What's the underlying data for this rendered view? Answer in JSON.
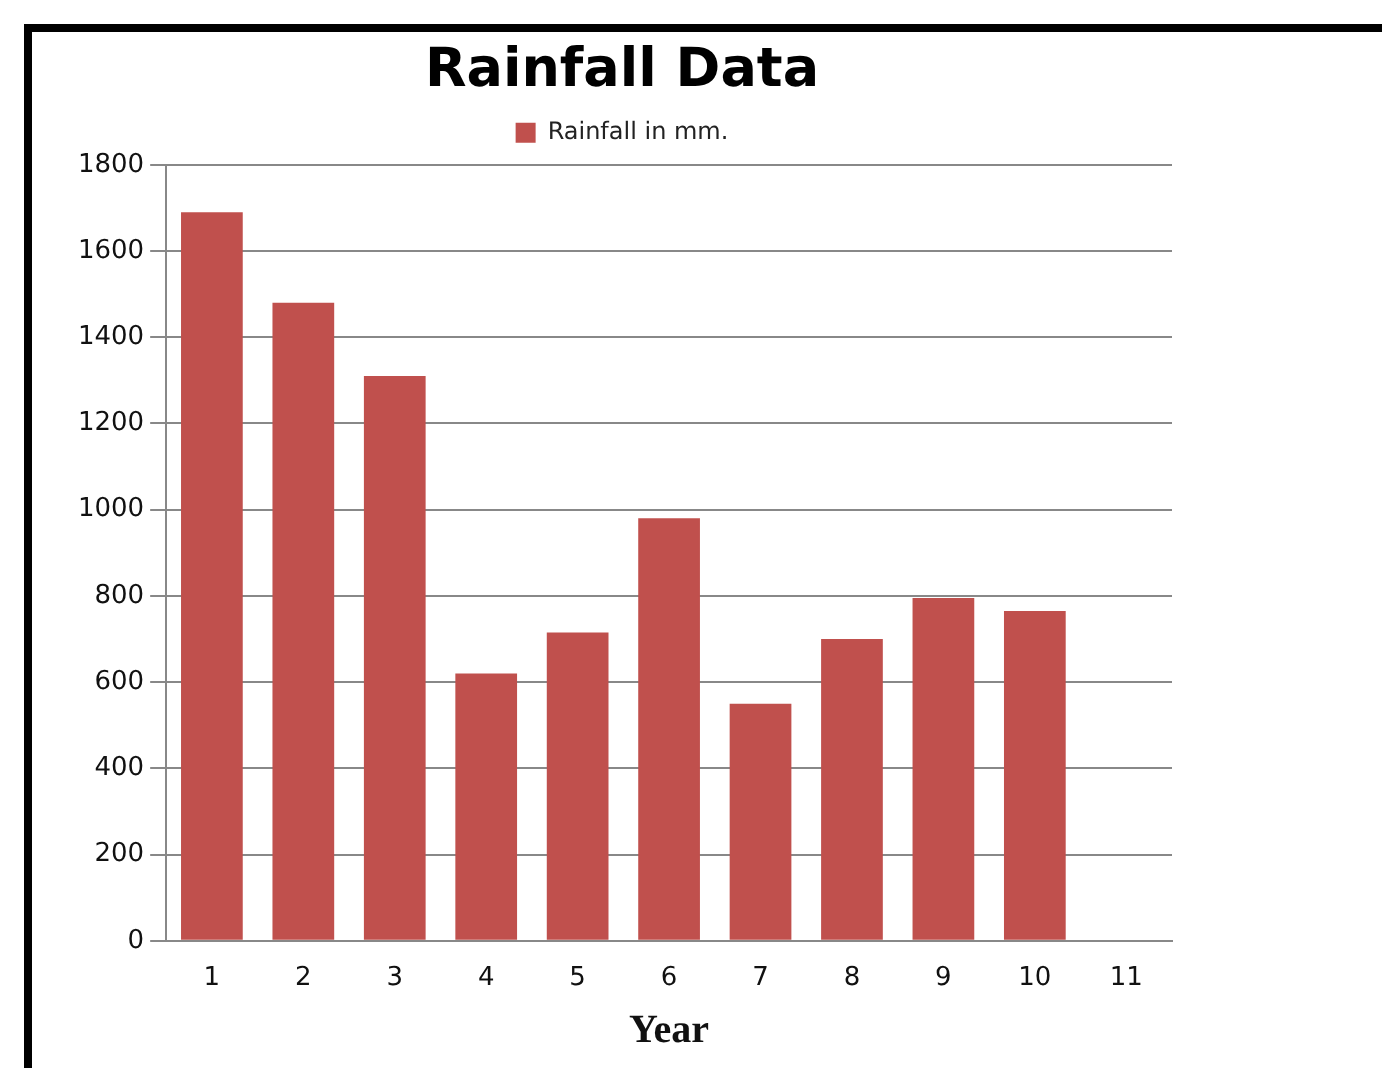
{
  "chart_data": {
    "type": "bar",
    "title": "Rainfall Data",
    "xlabel": "Year",
    "categories": [
      "1",
      "2",
      "3",
      "4",
      "5",
      "6",
      "7",
      "8",
      "9",
      "10",
      "11"
    ],
    "series": [
      {
        "name": "Rainfall in mm.",
        "color": "#c0504d",
        "values": [
          1690,
          1480,
          1310,
          620,
          715,
          980,
          550,
          700,
          795,
          765,
          null
        ]
      }
    ],
    "ylim": [
      0,
      1800
    ],
    "yticks": [
      0,
      200,
      400,
      600,
      800,
      1000,
      1200,
      1400,
      1600,
      1800
    ],
    "grid": "y",
    "legend": "top"
  }
}
